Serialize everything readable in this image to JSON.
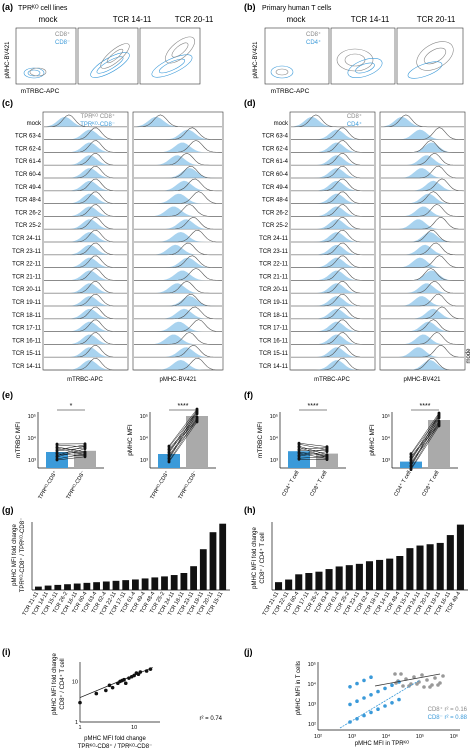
{
  "panels": {
    "a": {
      "letter": "(a)",
      "title": "TPRᴷᴼ cell lines",
      "cols": [
        "mock",
        "TCR 14-11",
        "TCR 20-11"
      ],
      "legend": [
        "CD8⁺",
        "CD8⁻"
      ],
      "ylabel": "pMHC-BV421",
      "xlabel": "mTRBC-APC"
    },
    "b": {
      "letter": "(b)",
      "title": "Primary human T cells",
      "cols": [
        "mock",
        "TCR 14-11",
        "TCR 20-11"
      ],
      "legend": [
        "CD8⁺",
        "CD4⁺"
      ],
      "ylabel": "pMHC-BV421",
      "xlabel": "mTRBC-APC"
    },
    "c": {
      "letter": "(c)",
      "legend": [
        "TPRᴷᴼ CD8⁺",
        "TPRᴷᴼ-CD8⁻"
      ],
      "xlabel1": "mTRBC-APC",
      "xlabel2": "pMHC-BV421"
    },
    "d": {
      "letter": "(d)",
      "legend": [
        "CD8⁺",
        "CD4⁺"
      ],
      "xlabel1": "mTRBC-APC",
      "xlabel2": "pMHC-BV421",
      "side": "mode"
    },
    "e": {
      "letter": "(e)",
      "y1": "mTRBC MFI",
      "y2": "pMHC MFI",
      "x": [
        "TPRᴷᴼ-CD8⁺",
        "TPRᴷᴼ-CD8⁻"
      ],
      "sig1": "*",
      "sig2": "****"
    },
    "f": {
      "letter": "(f)",
      "y1": "mTRBC MFI",
      "y2": "pMHC MFI",
      "x": [
        "CD4⁺ T cell",
        "CD8⁺ T cell"
      ],
      "sig1": "****",
      "sig2": "****"
    },
    "g": {
      "letter": "(g)",
      "ylabel1": "pMHC MFI fold change",
      "ylabel2": "TPRᴷᴼ-CD8⁺ / TPRᴷᴼ-CD8⁻"
    },
    "h": {
      "letter": "(h)",
      "ylabel1": "pMHC MFI fold change",
      "ylabel2": "CD8⁺ / CD4⁺ T cell"
    },
    "i": {
      "letter": "(i)",
      "ylabel1": "pMHC MFI fold change",
      "ylabel2": "CD8⁺ / CD4⁺ T cell",
      "xlabel1": "pMHC MFI fold change",
      "xlabel2": "TPRᴷᴼ-CD8⁺ / TPRᴷᴼ-CD8⁻",
      "r2": "r² = 0.74"
    },
    "j": {
      "letter": "(j)",
      "ylabel": "pMHC MFI in T cells",
      "xlabel": "pMHC MFI in TPRᴷᴼ",
      "r2a": "CD8⁺ r² = 0.16",
      "r2b": "CD8⁻ r² = 0.88"
    }
  },
  "tcr_list": [
    "mock",
    "TCR 63-4",
    "TCR 62-4",
    "TCR 61-4",
    "TCR 60-4",
    "TCR 49-4",
    "TCR 48-4",
    "TCR 26-2",
    "TCR 25-2",
    "TCR 24-11",
    "TCR 23-11",
    "TCR 22-11",
    "TCR 21-11",
    "TCR 20-11",
    "TCR 19-11",
    "TCR 18-11",
    "TCR 17-11",
    "TCR 16-11",
    "TCR 15-11",
    "TCR 14-11"
  ],
  "colors": {
    "grey": "#8a8a8a",
    "blue": "#3b9ad9",
    "lightblue": "#a9d3ef",
    "black": "#111111"
  },
  "chart_data": [
    {
      "id": "g",
      "type": "bar",
      "categories": [
        "TCR 21-11",
        "TCR 14-11",
        "TCR 15-11",
        "TCR 26-2",
        "TCR 16-11",
        "TCR 60-4",
        "TCR 63-4",
        "TCR 62-4",
        "TCR 22-11",
        "TCR 17-11",
        "TCR 61-4",
        "TCR 49-4",
        "TCR 48-4",
        "TCR 25-2",
        "TCR 24-11",
        "TCR 18-11",
        "TCR 23-11",
        "TCR 19-11",
        "TCR 20-11",
        "TCR 15-11"
      ],
      "values": [
        1.0,
        1.3,
        1.5,
        1.7,
        1.9,
        2.1,
        2.3,
        2.5,
        2.7,
        2.9,
        3.1,
        3.4,
        3.7,
        4.0,
        4.4,
        5.0,
        7.0,
        12.0,
        17.0,
        19.5
      ],
      "ylim": [
        0,
        20
      ]
    },
    {
      "id": "h",
      "type": "bar",
      "categories": [
        "TCR 21-11",
        "TCR 22-11",
        "TCR 60-4",
        "TCR 17-11",
        "TCR 26-2",
        "TCR 63-4",
        "TCR 61-4",
        "TCR 25-2",
        "TCR 23-11",
        "TCR 62-4",
        "TCR 18-11",
        "TCR 14-11",
        "TCR 48-4",
        "TCR 15-11",
        "TCR 24-11",
        "TCR 20-11",
        "TCR 19-11",
        "TCR 16-11",
        "TCR 49-4"
      ],
      "values": [
        3,
        4,
        6,
        6.5,
        7,
        8,
        9,
        9.5,
        10,
        11,
        11.5,
        12,
        13,
        16,
        17,
        17.5,
        18,
        21,
        25
      ],
      "ylim": [
        0,
        26
      ]
    },
    {
      "id": "e",
      "type": "bar",
      "series": [
        {
          "name": "mTRBC MFI",
          "values": [
            4,
            4.3
          ]
        },
        {
          "name": "pMHC MFI",
          "values": [
            3.5,
            13
          ]
        }
      ],
      "categories": [
        "TPRᴷᴼ-CD8⁺",
        "TPRᴷᴼ-CD8⁻"
      ]
    },
    {
      "id": "f",
      "type": "bar",
      "series": [
        {
          "name": "mTRBC MFI",
          "values": [
            4.2,
            3.6
          ]
        },
        {
          "name": "pMHC MFI",
          "values": [
            1.6,
            12
          ]
        }
      ],
      "categories": [
        "CD4⁺ T cell",
        "CD8⁺ T cell"
      ]
    },
    {
      "id": "i",
      "type": "scatter",
      "x": [
        1,
        2,
        3,
        3.5,
        4,
        5,
        5.5,
        6,
        6.5,
        7,
        8,
        9,
        10,
        11,
        12,
        13,
        17,
        20
      ],
      "y": [
        3,
        5,
        6,
        8,
        7,
        9,
        10,
        10.5,
        11,
        9,
        12,
        13,
        14,
        16,
        15,
        17,
        18,
        20
      ]
    }
  ]
}
